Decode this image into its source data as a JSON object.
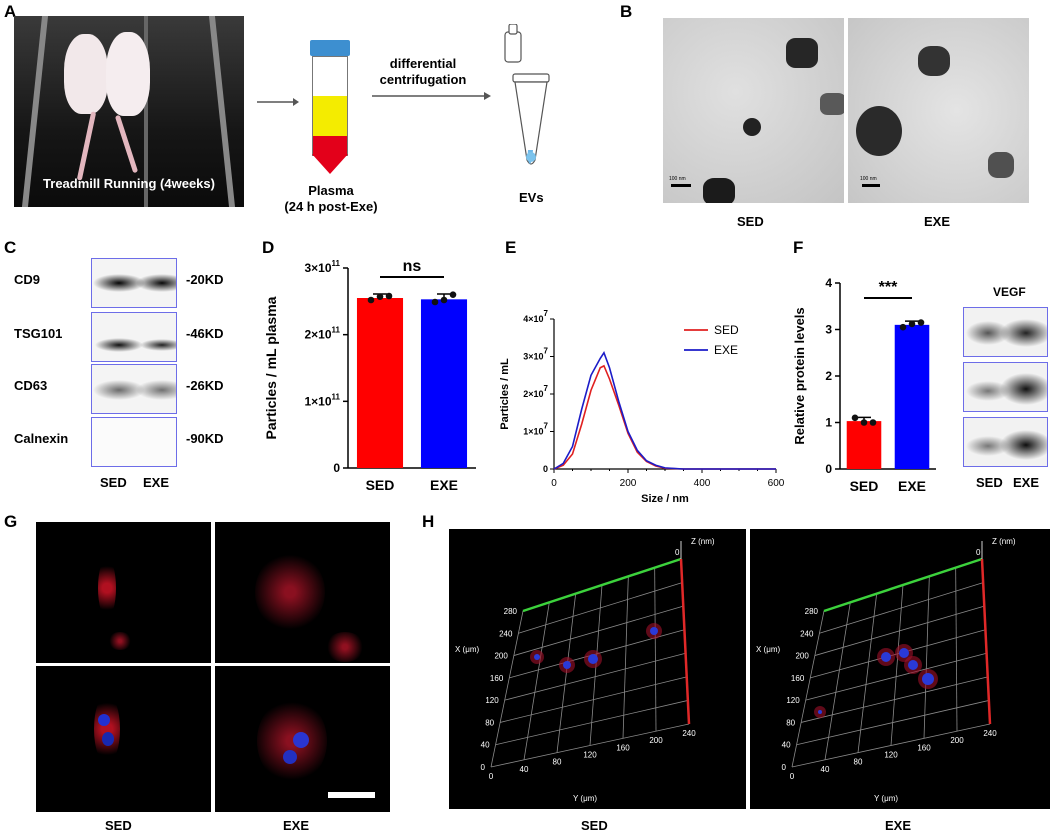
{
  "panels": {
    "a": "A",
    "b": "B",
    "c": "C",
    "d": "D",
    "e": "E",
    "f": "F",
    "g": "G",
    "h": "H"
  },
  "panel_a": {
    "photo_caption": "Treadmill Running (4weeks)",
    "tube_label_line1": "Plasma",
    "tube_label_line2": "(24 h post-Exe)",
    "arrow_label_line1": "differential",
    "arrow_label_line2": "centrifugation",
    "evs_label": "EVs"
  },
  "panel_b": {
    "scale_bar_left": "100 nm",
    "scale_bar_right": "100 nm",
    "label_left": "SED",
    "label_right": "EXE"
  },
  "panel_c": {
    "rows": [
      {
        "name": "CD9",
        "size": "-20KD"
      },
      {
        "name": "TSG101",
        "size": "-46KD"
      },
      {
        "name": "CD63",
        "size": "-26KD"
      },
      {
        "name": "Calnexin",
        "size": "-90KD"
      }
    ],
    "lane_left": "SED",
    "lane_right": "EXE"
  },
  "panel_f_blot": {
    "title": "VEGF",
    "lane_left": "SED",
    "lane_right": "EXE"
  },
  "panel_g": {
    "label_left": "SED",
    "label_right": "EXE"
  },
  "panel_h": {
    "label_left": "SED",
    "label_right": "EXE",
    "x_axis_label": "X (μm)",
    "y_axis_label": "Y (μm)",
    "z_axis_label": "Z (nm)",
    "z_tick": "0",
    "x_ticks": [
      "0",
      "40",
      "80",
      "120",
      "160",
      "200",
      "240",
      "280"
    ],
    "y_ticks": [
      "0",
      "40",
      "80",
      "120",
      "160",
      "200",
      "240"
    ]
  },
  "chart_data": [
    {
      "panel": "D",
      "type": "bar",
      "categories": [
        "SED",
        "EXE"
      ],
      "values": [
        255000000000.0,
        253000000000.0
      ],
      "errors": [
        6000000000.0,
        8000000000.0
      ],
      "points": [
        [
          252000000000.0,
          257000000000.0,
          258000000000.0
        ],
        [
          249000000000.0,
          252000000000.0,
          260000000000.0
        ]
      ],
      "colors": [
        "#ff0000",
        "#0000ff"
      ],
      "ylabel": "Particles / mL plasma",
      "ylim": [
        0,
        300000000000.0
      ],
      "y_ticks": [
        {
          "value": 0,
          "base": "0",
          "exp": ""
        },
        {
          "value": 100000000000.0,
          "base": "1×10",
          "exp": "11"
        },
        {
          "value": 200000000000.0,
          "base": "2×10",
          "exp": "11"
        },
        {
          "value": 300000000000.0,
          "base": "3×10",
          "exp": "11"
        }
      ],
      "annotation": "ns"
    },
    {
      "panel": "E",
      "type": "line",
      "xlabel": "Size / nm",
      "ylabel": "Particles / mL",
      "xlim": [
        0,
        600
      ],
      "ylim": [
        0,
        40000000.0
      ],
      "x_ticks": [
        "0",
        "200",
        "400",
        "600"
      ],
      "y_ticks": [
        {
          "value": 0,
          "base": "0",
          "exp": ""
        },
        {
          "value": 10000000.0,
          "base": "1×10",
          "exp": "7"
        },
        {
          "value": 20000000.0,
          "base": "2×10",
          "exp": "7"
        },
        {
          "value": 30000000.0,
          "base": "3×10",
          "exp": "7"
        },
        {
          "value": 40000000.0,
          "base": "4×10",
          "exp": "7"
        }
      ],
      "legend_position": "top-right",
      "series": [
        {
          "name": "SED",
          "color": "#e02020",
          "x": [
            0,
            25,
            50,
            75,
            100,
            125,
            135,
            150,
            175,
            200,
            225,
            250,
            275,
            300,
            350,
            400,
            450,
            500,
            550,
            600
          ],
          "y": [
            0,
            1000000.0,
            4000000.0,
            12000000.0,
            21000000.0,
            27000000.0,
            27500000.0,
            24000000.0,
            17000000.0,
            9500000.0,
            4500000.0,
            2000000.0,
            800000.0,
            200000.0,
            0,
            0,
            0,
            0,
            0,
            0
          ]
        },
        {
          "name": "EXE",
          "color": "#1c1cc8",
          "x": [
            0,
            25,
            50,
            75,
            100,
            125,
            135,
            150,
            175,
            200,
            225,
            250,
            275,
            300,
            350,
            400,
            450,
            500,
            550,
            600
          ],
          "y": [
            0,
            1500000.0,
            6000000.0,
            16000000.0,
            25000000.0,
            29500000.0,
            31000000.0,
            27000000.0,
            18000000.0,
            10000000.0,
            5000000.0,
            2200000.0,
            1000000.0,
            300000.0,
            0,
            0,
            0,
            0,
            0,
            0
          ]
        }
      ]
    },
    {
      "panel": "F",
      "type": "bar",
      "categories": [
        "SED",
        "EXE"
      ],
      "values": [
        1.03,
        3.1
      ],
      "errors": [
        0.08,
        0.08
      ],
      "points": [
        [
          1.1,
          1.0,
          1.0
        ],
        [
          3.05,
          3.12,
          3.15
        ]
      ],
      "colors": [
        "#ff0000",
        "#0000ff"
      ],
      "ylabel": "Relative protein levels",
      "ylim": [
        0,
        4
      ],
      "y_ticks": [
        {
          "value": 0,
          "base": "0",
          "exp": ""
        },
        {
          "value": 1,
          "base": "1",
          "exp": ""
        },
        {
          "value": 2,
          "base": "2",
          "exp": ""
        },
        {
          "value": 3,
          "base": "3",
          "exp": ""
        },
        {
          "value": 4,
          "base": "4",
          "exp": ""
        }
      ],
      "annotation": "***"
    }
  ]
}
